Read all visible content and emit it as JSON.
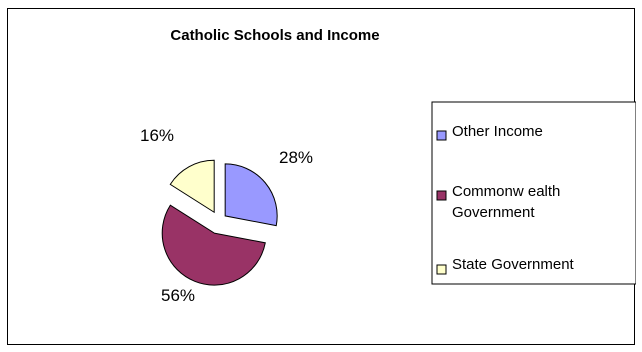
{
  "chart_data": {
    "type": "pie",
    "title": "Catholic Schools and Income",
    "categories": [
      "Other Income",
      "Commonwealth Government",
      "State Government"
    ],
    "values": [
      28,
      56,
      16
    ],
    "data_labels": [
      "28%",
      "56%",
      "16%"
    ],
    "legend_lines": [
      [
        "Other Income"
      ],
      [
        "Commonw ealth",
        "Government"
      ],
      [
        "State Government"
      ]
    ],
    "colors": [
      "#9999FF",
      "#993366",
      "#FFFFCC"
    ],
    "legend_placement": "right",
    "exploded": true
  }
}
